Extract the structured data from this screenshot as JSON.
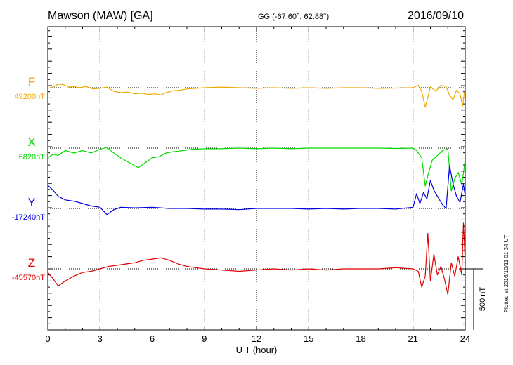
{
  "header": {
    "station": "Mawson (MAW)  [GA]",
    "coords": "GG (-67.60°,  62.88°)",
    "date": "2016/09/10"
  },
  "footer": {
    "plotted": "Plotted at 2016/10/11 01:34 UT",
    "scale_label": "500 nT"
  },
  "chart_data": {
    "type": "line",
    "xlabel": "U T (hour)",
    "xlim": [
      0,
      24
    ],
    "x_ticks": [
      "0",
      "3",
      "6",
      "9",
      "12",
      "15",
      "18",
      "21",
      "24"
    ],
    "scale_bar_nT": 500,
    "series": [
      {
        "name": "F",
        "baseline": "49200nT",
        "color": "#f0a800",
        "points": [
          [
            0,
            -5
          ],
          [
            0.3,
            5
          ],
          [
            0.6,
            30
          ],
          [
            0.9,
            25
          ],
          [
            1.2,
            5
          ],
          [
            1.5,
            10
          ],
          [
            1.8,
            0
          ],
          [
            2.2,
            10
          ],
          [
            2.6,
            -10
          ],
          [
            3.0,
            -5
          ],
          [
            3.4,
            5
          ],
          [
            3.8,
            -30
          ],
          [
            4.2,
            -40
          ],
          [
            4.6,
            -35
          ],
          [
            5.0,
            -50
          ],
          [
            5.4,
            -45
          ],
          [
            5.8,
            -55
          ],
          [
            6.2,
            -50
          ],
          [
            6.5,
            -60
          ],
          [
            6.8,
            -40
          ],
          [
            7.2,
            -25
          ],
          [
            7.6,
            -20
          ],
          [
            8.0,
            -10
          ],
          [
            8.5,
            -5
          ],
          [
            9.0,
            0
          ],
          [
            10,
            5
          ],
          [
            11,
            0
          ],
          [
            12,
            -5
          ],
          [
            13,
            0
          ],
          [
            14,
            -5
          ],
          [
            15,
            0
          ],
          [
            16,
            -5
          ],
          [
            17,
            0
          ],
          [
            18,
            0
          ],
          [
            19,
            -5
          ],
          [
            20,
            -3
          ],
          [
            21,
            0
          ],
          [
            21.3,
            20
          ],
          [
            21.5,
            -30
          ],
          [
            21.7,
            -160
          ],
          [
            21.85,
            -80
          ],
          [
            22.0,
            10
          ],
          [
            22.3,
            -30
          ],
          [
            22.6,
            20
          ],
          [
            22.9,
            10
          ],
          [
            23.1,
            -60
          ],
          [
            23.3,
            -100
          ],
          [
            23.5,
            -20
          ],
          [
            23.7,
            -50
          ],
          [
            23.85,
            -150
          ],
          [
            23.95,
            -40
          ],
          [
            24,
            -60
          ]
        ]
      },
      {
        "name": "X",
        "baseline": "6820nT",
        "color": "#00d800",
        "points": [
          [
            0,
            -80
          ],
          [
            0.3,
            -50
          ],
          [
            0.6,
            -60
          ],
          [
            1.0,
            -20
          ],
          [
            1.5,
            -40
          ],
          [
            2.0,
            -20
          ],
          [
            2.5,
            -40
          ],
          [
            3.0,
            -10
          ],
          [
            3.4,
            5
          ],
          [
            3.7,
            -30
          ],
          [
            4.2,
            -80
          ],
          [
            4.7,
            -120
          ],
          [
            5.2,
            -160
          ],
          [
            5.6,
            -120
          ],
          [
            6.0,
            -80
          ],
          [
            6.4,
            -70
          ],
          [
            6.8,
            -40
          ],
          [
            7.2,
            -30
          ],
          [
            7.8,
            -20
          ],
          [
            8.3,
            -10
          ],
          [
            9.0,
            -5
          ],
          [
            10,
            -5
          ],
          [
            11,
            0
          ],
          [
            12,
            -5
          ],
          [
            13,
            0
          ],
          [
            14,
            -5
          ],
          [
            15,
            0
          ],
          [
            16,
            0
          ],
          [
            17,
            0
          ],
          [
            18,
            0
          ],
          [
            19,
            0
          ],
          [
            20,
            -3
          ],
          [
            21,
            0
          ],
          [
            21.2,
            -20
          ],
          [
            21.5,
            -80
          ],
          [
            21.7,
            -310
          ],
          [
            21.9,
            -200
          ],
          [
            22.1,
            -100
          ],
          [
            22.4,
            -60
          ],
          [
            22.7,
            -20
          ],
          [
            23.0,
            -5
          ],
          [
            23.2,
            -350
          ],
          [
            23.4,
            -250
          ],
          [
            23.6,
            -200
          ],
          [
            23.8,
            -300
          ],
          [
            23.95,
            -150
          ],
          [
            24,
            -80
          ]
        ]
      },
      {
        "name": "Y",
        "baseline": "-17240nT",
        "color": "#0000e0",
        "points": [
          [
            0,
            190
          ],
          [
            0.3,
            150
          ],
          [
            0.6,
            100
          ],
          [
            1.0,
            70
          ],
          [
            1.5,
            60
          ],
          [
            2.0,
            40
          ],
          [
            2.5,
            20
          ],
          [
            3.0,
            10
          ],
          [
            3.4,
            -50
          ],
          [
            3.8,
            -10
          ],
          [
            4.2,
            10
          ],
          [
            5.0,
            5
          ],
          [
            6.0,
            10
          ],
          [
            7.0,
            0
          ],
          [
            8.0,
            0
          ],
          [
            9.0,
            -5
          ],
          [
            10,
            -5
          ],
          [
            11,
            -10
          ],
          [
            12,
            0
          ],
          [
            13,
            0
          ],
          [
            14,
            0
          ],
          [
            15,
            -5
          ],
          [
            16,
            0
          ],
          [
            17,
            -5
          ],
          [
            18,
            0
          ],
          [
            19,
            0
          ],
          [
            20,
            -5
          ],
          [
            21,
            10
          ],
          [
            21.2,
            120
          ],
          [
            21.4,
            40
          ],
          [
            21.6,
            130
          ],
          [
            21.8,
            80
          ],
          [
            22.0,
            230
          ],
          [
            22.2,
            150
          ],
          [
            22.4,
            100
          ],
          [
            22.7,
            30
          ],
          [
            22.9,
            0
          ],
          [
            23.1,
            350
          ],
          [
            23.3,
            200
          ],
          [
            23.5,
            100
          ],
          [
            23.7,
            50
          ],
          [
            23.9,
            200
          ],
          [
            24,
            100
          ]
        ]
      },
      {
        "name": "Z",
        "baseline": "-45570nT",
        "color": "#e00000",
        "points": [
          [
            0,
            -30
          ],
          [
            0.3,
            -80
          ],
          [
            0.6,
            -140
          ],
          [
            1.0,
            -100
          ],
          [
            1.5,
            -60
          ],
          [
            2.0,
            -30
          ],
          [
            2.5,
            -20
          ],
          [
            3.0,
            0
          ],
          [
            3.5,
            20
          ],
          [
            4.0,
            30
          ],
          [
            4.5,
            40
          ],
          [
            5.0,
            50
          ],
          [
            5.5,
            70
          ],
          [
            6.0,
            80
          ],
          [
            6.5,
            90
          ],
          [
            7.0,
            70
          ],
          [
            7.5,
            40
          ],
          [
            8.0,
            20
          ],
          [
            8.5,
            10
          ],
          [
            9.0,
            0
          ],
          [
            10,
            -10
          ],
          [
            11,
            -20
          ],
          [
            12,
            -10
          ],
          [
            13,
            0
          ],
          [
            14,
            -10
          ],
          [
            15,
            0
          ],
          [
            16,
            -10
          ],
          [
            17,
            0
          ],
          [
            18,
            0
          ],
          [
            19,
            0
          ],
          [
            20,
            10
          ],
          [
            21,
            0
          ],
          [
            21.3,
            -20
          ],
          [
            21.5,
            -150
          ],
          [
            21.7,
            -60
          ],
          [
            21.85,
            290
          ],
          [
            22.0,
            -100
          ],
          [
            22.2,
            120
          ],
          [
            22.4,
            -50
          ],
          [
            22.6,
            20
          ],
          [
            22.8,
            -80
          ],
          [
            23.0,
            -210
          ],
          [
            23.2,
            50
          ],
          [
            23.4,
            -60
          ],
          [
            23.6,
            100
          ],
          [
            23.8,
            -50
          ],
          [
            23.9,
            380
          ],
          [
            24,
            50
          ]
        ]
      }
    ]
  }
}
